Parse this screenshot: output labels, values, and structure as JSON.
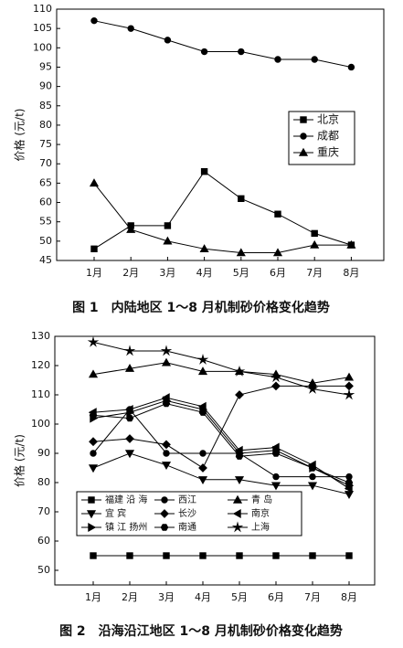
{
  "chart_data": [
    {
      "type": "line",
      "caption": "图 1　内陆地区 1～8 月机制砂价格变化趋势",
      "y_label": "价格 (元/t)",
      "categories": [
        "1月",
        "2月",
        "3月",
        "4月",
        "5月",
        "6月",
        "7月",
        "8月"
      ],
      "ylim": [
        45,
        110
      ],
      "yticks": [
        45,
        50,
        55,
        60,
        65,
        70,
        75,
        80,
        85,
        90,
        95,
        100,
        105,
        110
      ],
      "series": [
        {
          "name": "北京",
          "color": "#000000",
          "marker": "square",
          "values": [
            48,
            54,
            54,
            68,
            61,
            57,
            52,
            49
          ]
        },
        {
          "name": "成都",
          "color": "#000000",
          "marker": "circle",
          "values": [
            107,
            105,
            102,
            99,
            99,
            97,
            97,
            95
          ]
        },
        {
          "name": "重庆",
          "color": "#000000",
          "marker": "triangle-up",
          "values": [
            65,
            53,
            50,
            48,
            47,
            47,
            49,
            49
          ]
        }
      ]
    },
    {
      "type": "line",
      "caption": "图 2　沿海沿江地区 1～8 月机制砂价格变化趋势",
      "y_label": "价格 (元/t)",
      "categories": [
        "1月",
        "2月",
        "3月",
        "4月",
        "5月",
        "6月",
        "7月",
        "8月"
      ],
      "ylim": [
        45,
        130
      ],
      "yticks": [
        50,
        60,
        70,
        80,
        90,
        100,
        110,
        120,
        130
      ],
      "series": [
        {
          "name": "福建 沿 海",
          "color": "#000000",
          "marker": "square",
          "values": [
            55,
            55,
            55,
            55,
            55,
            55,
            55,
            55
          ]
        },
        {
          "name": "西江",
          "color": "#000000",
          "marker": "circle",
          "values": [
            90,
            105,
            90,
            90,
            90,
            82,
            82,
            82
          ]
        },
        {
          "name": "青 岛",
          "color": "#000000",
          "marker": "triangle-up",
          "values": [
            117,
            119,
            121,
            118,
            118,
            117,
            114,
            116
          ]
        },
        {
          "name": "宜 宾",
          "color": "#000000",
          "marker": "triangle-down",
          "values": [
            85,
            90,
            86,
            81,
            81,
            79,
            79,
            76
          ]
        },
        {
          "name": "长沙",
          "color": "#000000",
          "marker": "diamond",
          "values": [
            94,
            95,
            93,
            85,
            110,
            113,
            113,
            113
          ]
        },
        {
          "name": "南京",
          "color": "#000000",
          "marker": "triangle-left",
          "values": [
            104,
            105,
            109,
            106,
            91,
            92,
            86,
            78
          ]
        },
        {
          "name": "镇 江 扬州",
          "color": "#000000",
          "marker": "triangle-right",
          "values": [
            102,
            104,
            108,
            105,
            90,
            91,
            85,
            79
          ]
        },
        {
          "name": "南通",
          "color": "#000000",
          "marker": "hexagon",
          "values": [
            103,
            102,
            107,
            104,
            89,
            90,
            85,
            80
          ]
        },
        {
          "name": "上海",
          "color": "#000000",
          "marker": "star",
          "values": [
            128,
            125,
            125,
            122,
            118,
            116,
            112,
            110
          ]
        }
      ]
    }
  ]
}
